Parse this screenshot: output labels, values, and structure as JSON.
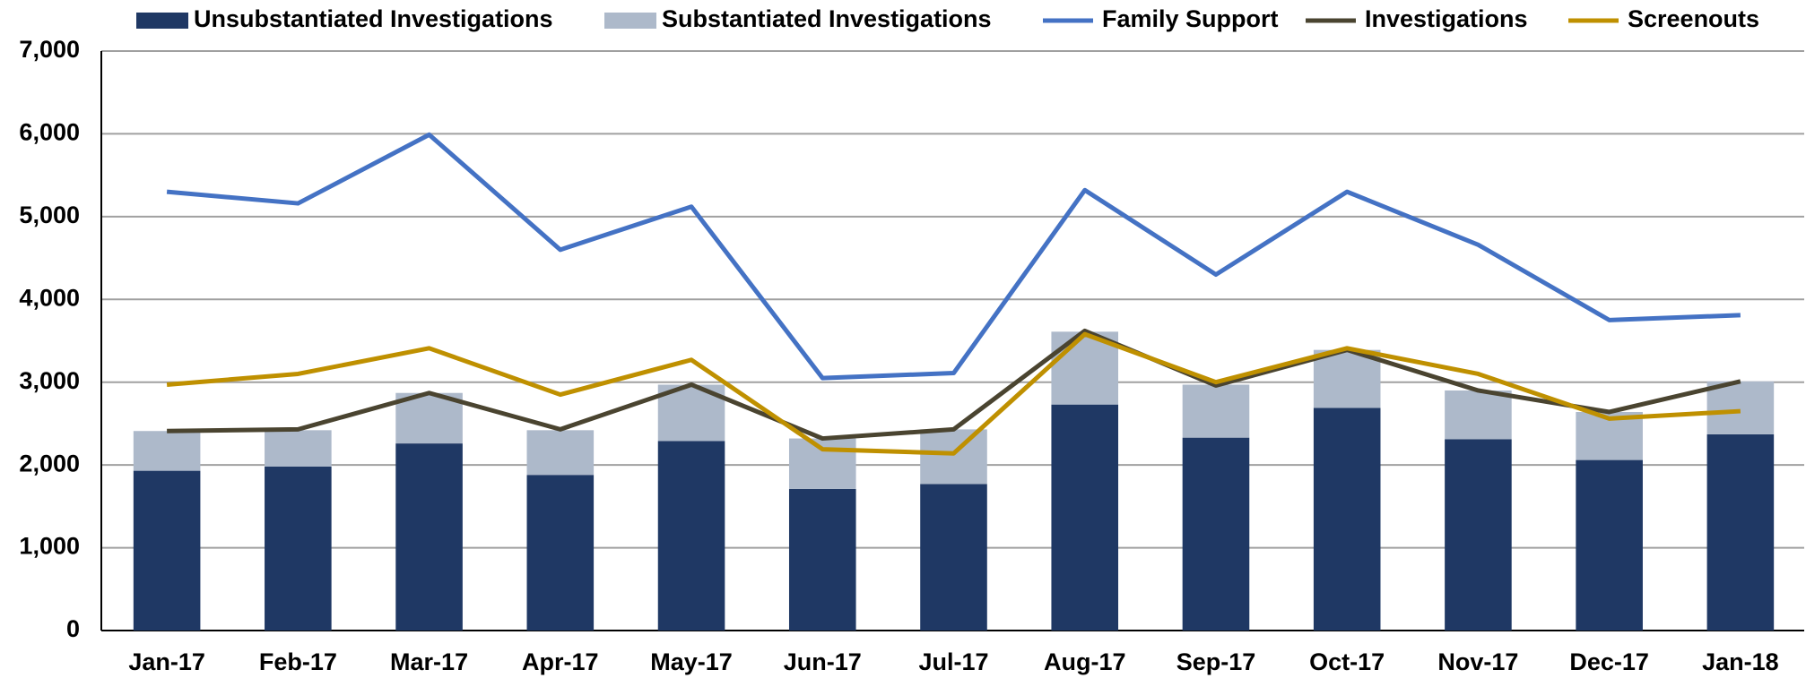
{
  "chart_data": {
    "type": "bar-line",
    "categories": [
      "Jan-17",
      "Feb-17",
      "Mar-17",
      "Apr-17",
      "May-17",
      "Jun-17",
      "Jul-17",
      "Aug-17",
      "Sep-17",
      "Oct-17",
      "Nov-17",
      "Dec-17",
      "Jan-18"
    ],
    "series": [
      {
        "name": "Unsubstantiated Investigations",
        "type": "bar",
        "color": "#1f3864",
        "values": [
          1930,
          1980,
          2260,
          1880,
          2290,
          1710,
          1770,
          2730,
          2330,
          2690,
          2310,
          2060,
          2370
        ]
      },
      {
        "name": "Substantiated Investigations",
        "type": "bar",
        "color": "#adb9ca",
        "values": [
          480,
          440,
          610,
          540,
          680,
          610,
          660,
          880,
          640,
          700,
          590,
          580,
          640
        ]
      },
      {
        "name": "Family Support",
        "type": "line",
        "color": "#4472c4",
        "values": [
          5300,
          5160,
          5990,
          4600,
          5120,
          3050,
          3110,
          5320,
          4300,
          5300,
          4660,
          3750,
          3810
        ]
      },
      {
        "name": "Investigations",
        "type": "line",
        "color": "#4a4430",
        "values": [
          2410,
          2430,
          2870,
          2430,
          2970,
          2320,
          2430,
          3620,
          2960,
          3390,
          2900,
          2640,
          3010
        ]
      },
      {
        "name": "Screenouts",
        "type": "line",
        "color": "#bf9000",
        "values": [
          2970,
          3100,
          3410,
          2850,
          3270,
          2190,
          2140,
          3580,
          3000,
          3410,
          3100,
          2560,
          2650
        ]
      }
    ],
    "ylim": [
      0,
      7000
    ],
    "yticks": [
      0,
      {
        "value": 1000,
        "label": "1,000"
      },
      {
        "value": 2000,
        "label": "2,000"
      },
      {
        "value": 3000,
        "label": "3,000"
      },
      {
        "value": 4000,
        "label": "4,000"
      },
      {
        "value": 5000,
        "label": "5,000"
      },
      {
        "value": 6000,
        "label": "6,000"
      },
      {
        "value": 7000,
        "label": "7,000"
      }
    ],
    "grid": true,
    "legend": "top"
  }
}
